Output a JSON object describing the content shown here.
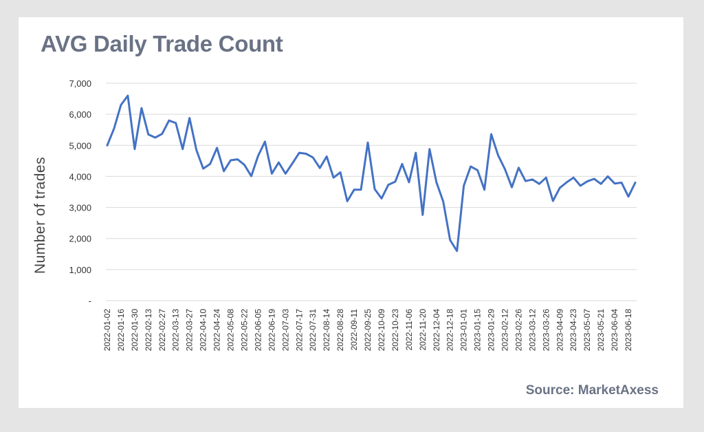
{
  "chart_data": {
    "type": "line",
    "title": "AVG Daily Trade Count",
    "ylabel": "Number of trades",
    "xlabel": "",
    "source": "Source: MarketAxess",
    "ylim": [
      0,
      7000
    ],
    "y_ticks": [
      {
        "value": 0,
        "label": "-"
      },
      {
        "value": 1000,
        "label": "1,000"
      },
      {
        "value": 2000,
        "label": "2,000"
      },
      {
        "value": 3000,
        "label": "3,000"
      },
      {
        "value": 4000,
        "label": "4,000"
      },
      {
        "value": 5000,
        "label": "5,000"
      },
      {
        "value": 6000,
        "label": "6,000"
      },
      {
        "value": 7000,
        "label": "7,000"
      }
    ],
    "grid": true,
    "legend": "none",
    "line_color": "#4472c4",
    "x_tick_labels": [
      "2022-01-02",
      "2022-01-16",
      "2022-01-30",
      "2022-02-13",
      "2022-02-27",
      "2022-03-13",
      "2022-03-27",
      "2022-04-10",
      "2022-04-24",
      "2022-05-08",
      "2022-05-22",
      "2022-06-05",
      "2022-06-19",
      "2022-07-03",
      "2022-07-17",
      "2022-07-31",
      "2022-08-14",
      "2022-08-28",
      "2022-09-11",
      "2022-09-25",
      "2022-10-09",
      "2022-10-23",
      "2022-11-06",
      "2022-11-20",
      "2022-12-04",
      "2022-12-18",
      "2023-01-01",
      "2023-01-15",
      "2023-01-29",
      "2023-02-12",
      "2023-02-26",
      "2023-03-12",
      "2023-03-26",
      "2023-04-09",
      "2023-04-23",
      "2023-05-07",
      "2023-05-21",
      "2023-06-04",
      "2023-06-18"
    ],
    "series": [
      {
        "values": [
          5000,
          5550,
          6300,
          6600,
          4880,
          6200,
          5350,
          5250,
          5370,
          5800,
          5720,
          4880,
          5880,
          4850,
          4250,
          4400,
          4920,
          4170,
          4520,
          4550,
          4370,
          4010,
          4660,
          5120,
          4090,
          4450,
          4090,
          4420,
          4760,
          4730,
          4610,
          4270,
          4640,
          3960,
          4130,
          3200,
          3570,
          3570,
          5090,
          3590,
          3290,
          3730,
          3830,
          4400,
          3810,
          4760,
          2760,
          4880,
          3810,
          3190,
          1950,
          1600,
          3700,
          4320,
          4200,
          3570,
          5360,
          4680,
          4230,
          3650,
          4280,
          3850,
          3900,
          3760,
          3960,
          3210,
          3630,
          3810,
          3960,
          3700,
          3840,
          3920,
          3760,
          4000,
          3770,
          3800,
          3350,
          3800
        ]
      }
    ]
  }
}
